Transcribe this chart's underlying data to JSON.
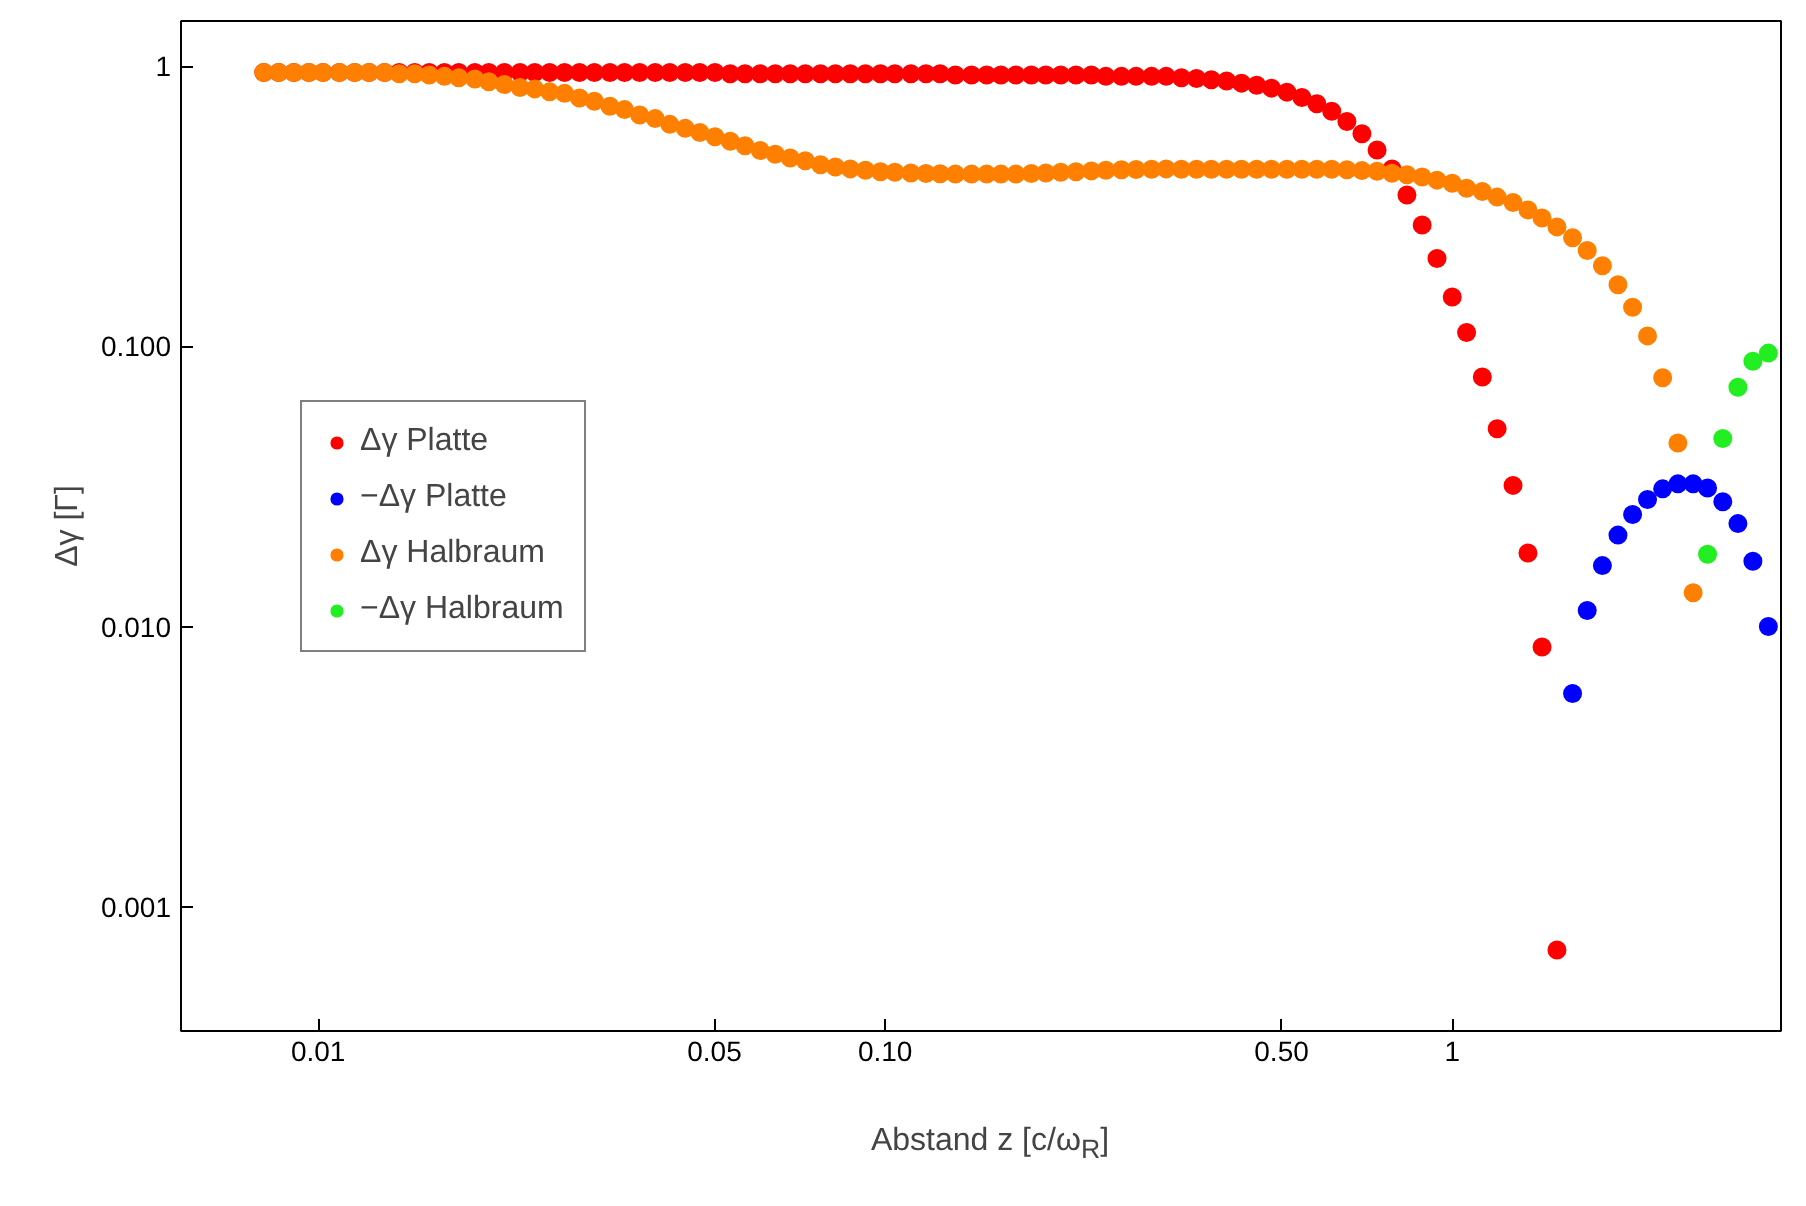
{
  "chart_data": {
    "type": "scatter",
    "xlabel": "Abstand z [c/ω$_{R}$]",
    "ylabel": "Δγ [Γ]",
    "log": "xy",
    "grid": false,
    "legend": "left",
    "marker": "circle",
    "xlim": [
      0.00573,
      3.8
    ],
    "ylim": [
      0.00036,
      1.45
    ],
    "xticks": [
      0.01,
      {
        "value": 0.05,
        "label": "0.05"
      },
      {
        "value": 0.1,
        "label": "0.10"
      },
      {
        "value": 0.5,
        "label": "0.50"
      },
      1
    ],
    "yticks": [
      {
        "value": 0.001,
        "label": "0.001"
      },
      {
        "value": 0.01,
        "label": "0.010"
      },
      {
        "value": 0.1,
        "label": "0.100"
      },
      1
    ],
    "x": [
      0.00802,
      0.00852,
      0.00906,
      0.00963,
      0.0102,
      0.0109,
      0.0116,
      0.0123,
      0.0131,
      0.0139,
      0.0148,
      0.0157,
      0.0167,
      0.0177,
      0.0189,
      0.02,
      0.0213,
      0.0227,
      0.0241,
      0.0256,
      0.0272,
      0.0289,
      0.0307,
      0.0327,
      0.0347,
      0.0369,
      0.0393,
      0.0417,
      0.0444,
      0.0471,
      0.0501,
      0.0533,
      0.0566,
      0.0602,
      0.064,
      0.068,
      0.0723,
      0.0769,
      0.0817,
      0.0868,
      0.0923,
      0.0981,
      0.104,
      0.111,
      0.118,
      0.125,
      0.133,
      0.142,
      0.151,
      0.16,
      0.17,
      0.181,
      0.192,
      0.204,
      0.217,
      0.231,
      0.245,
      0.261,
      0.277,
      0.295,
      0.313,
      0.333,
      0.354,
      0.376,
      0.4,
      0.425,
      0.452,
      0.48,
      0.511,
      0.543,
      0.577,
      0.613,
      0.652,
      0.693,
      0.737,
      0.783,
      0.832,
      0.885,
      0.94,
      1.0,
      1.06,
      1.13,
      1.2,
      1.28,
      1.36,
      1.44,
      1.53,
      1.63,
      1.73,
      1.84,
      1.96,
      2.08,
      2.21,
      2.35,
      2.5,
      2.66,
      2.82,
      3.0,
      3.19,
      3.39,
      3.61
    ],
    "series": [
      {
        "name": "Δγ Platte",
        "color": "#ff0000",
        "values": [
          0.95,
          0.95,
          0.95,
          0.95,
          0.95,
          0.95,
          0.95,
          0.95,
          0.95,
          0.95,
          0.95,
          0.95,
          0.95,
          0.95,
          0.95,
          0.95,
          0.95,
          0.95,
          0.95,
          0.95,
          0.95,
          0.95,
          0.95,
          0.95,
          0.95,
          0.95,
          0.95,
          0.95,
          0.95,
          0.95,
          0.95,
          0.94,
          0.94,
          0.94,
          0.94,
          0.94,
          0.94,
          0.94,
          0.94,
          0.94,
          0.94,
          0.94,
          0.94,
          0.94,
          0.94,
          0.94,
          0.93,
          0.93,
          0.93,
          0.93,
          0.93,
          0.93,
          0.93,
          0.93,
          0.93,
          0.93,
          0.92,
          0.92,
          0.92,
          0.92,
          0.92,
          0.909,
          0.904,
          0.894,
          0.885,
          0.87,
          0.855,
          0.835,
          0.808,
          0.773,
          0.735,
          0.691,
          0.635,
          0.574,
          0.502,
          0.43,
          0.347,
          0.271,
          0.206,
          0.15,
          0.112,
          0.0778,
          0.0508,
          0.0319,
          0.0183,
          0.00845,
          0.0007,
          null,
          null,
          null,
          null,
          null,
          null,
          null,
          null,
          null,
          null,
          null,
          null,
          null,
          null
        ]
      },
      {
        "name": "−Δγ Platte",
        "color": "#0000ff",
        "values": [
          null,
          null,
          null,
          null,
          null,
          null,
          null,
          null,
          null,
          null,
          null,
          null,
          null,
          null,
          null,
          null,
          null,
          null,
          null,
          null,
          null,
          null,
          null,
          null,
          null,
          null,
          null,
          null,
          null,
          null,
          null,
          null,
          null,
          null,
          null,
          null,
          null,
          null,
          null,
          null,
          null,
          null,
          null,
          null,
          null,
          null,
          null,
          null,
          null,
          null,
          null,
          null,
          null,
          null,
          null,
          null,
          null,
          null,
          null,
          null,
          null,
          null,
          null,
          null,
          null,
          null,
          null,
          null,
          null,
          null,
          null,
          null,
          null,
          null,
          null,
          null,
          null,
          null,
          null,
          null,
          null,
          null,
          null,
          null,
          null,
          null,
          null,
          0.00577,
          0.0114,
          0.0165,
          0.0212,
          0.0251,
          0.0284,
          0.031,
          0.0323,
          0.0323,
          0.0312,
          0.0279,
          0.0233,
          0.0171,
          0.01
        ]
      },
      {
        "name": "Δγ Halbraum",
        "color": "#ff8000",
        "values": [
          0.95,
          0.95,
          0.95,
          0.95,
          0.95,
          0.95,
          0.95,
          0.95,
          0.95,
          0.94,
          0.94,
          0.93,
          0.92,
          0.91,
          0.9,
          0.88,
          0.86,
          0.84,
          0.83,
          0.81,
          0.8,
          0.77,
          0.75,
          0.72,
          0.7,
          0.67,
          0.65,
          0.62,
          0.6,
          0.58,
          0.56,
          0.54,
          0.52,
          0.5,
          0.485,
          0.47,
          0.46,
          0.445,
          0.437,
          0.43,
          0.425,
          0.42,
          0.418,
          0.416,
          0.414,
          0.413,
          0.412,
          0.412,
          0.412,
          0.412,
          0.412,
          0.414,
          0.416,
          0.418,
          0.42,
          0.423,
          0.425,
          0.427,
          0.428,
          0.429,
          0.43,
          0.429,
          0.429,
          0.429,
          0.429,
          0.429,
          0.429,
          0.429,
          0.429,
          0.429,
          0.429,
          0.429,
          0.427,
          0.424,
          0.422,
          0.415,
          0.41,
          0.402,
          0.392,
          0.382,
          0.367,
          0.357,
          0.341,
          0.326,
          0.307,
          0.287,
          0.267,
          0.244,
          0.22,
          0.194,
          0.166,
          0.138,
          0.109,
          0.0773,
          0.0452,
          0.0132,
          null,
          null,
          null,
          null,
          null
        ]
      },
      {
        "name": "−Δγ Halbraum",
        "color": "#22ee22",
        "values": [
          null,
          null,
          null,
          null,
          null,
          null,
          null,
          null,
          null,
          null,
          null,
          null,
          null,
          null,
          null,
          null,
          null,
          null,
          null,
          null,
          null,
          null,
          null,
          null,
          null,
          null,
          null,
          null,
          null,
          null,
          null,
          null,
          null,
          null,
          null,
          null,
          null,
          null,
          null,
          null,
          null,
          null,
          null,
          null,
          null,
          null,
          null,
          null,
          null,
          null,
          null,
          null,
          null,
          null,
          null,
          null,
          null,
          null,
          null,
          null,
          null,
          null,
          null,
          null,
          null,
          null,
          null,
          null,
          null,
          null,
          null,
          null,
          null,
          null,
          null,
          null,
          null,
          null,
          null,
          null,
          null,
          null,
          null,
          null,
          null,
          null,
          null,
          null,
          null,
          null,
          null,
          null,
          null,
          null,
          null,
          null,
          0.0181,
          0.0469,
          0.0715,
          0.0885,
          0.0946
        ]
      }
    ]
  }
}
